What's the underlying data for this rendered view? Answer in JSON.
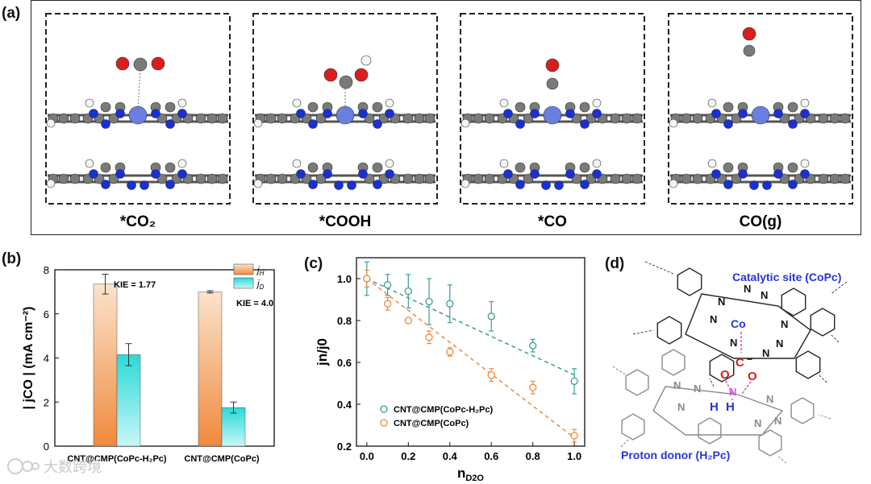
{
  "panel_a": {
    "label": "(a)",
    "states": [
      {
        "label": "*CO₂",
        "adsorbate": "CO2"
      },
      {
        "label": "*COOH",
        "adsorbate": "COOH"
      },
      {
        "label": "*CO",
        "adsorbate": "CO"
      },
      {
        "label": "CO(g)",
        "adsorbate": "COg"
      }
    ]
  },
  "colors": {
    "orange": "#f08a3c",
    "cyan": "#2bd9d9",
    "teal": "#3a9e96",
    "nitrogen": "#1a2fd6",
    "oxygen": "#d81e1e",
    "carbon": "#7a7a7a",
    "cobalt": "#6a7fe0",
    "blue_text": "#2536d8",
    "magenta": "#d04fd8"
  },
  "panel_b": {
    "label": "(b)"
  },
  "panel_c": {
    "label": "(c)"
  },
  "panel_d": {
    "label": "(d)",
    "catalytic_site": "Catalytic site (CoPc)",
    "proton_donor": "Proton donor (H₂Pc)",
    "co_label": "Co",
    "c_label": "C",
    "o_label": "O",
    "o_minus": "−",
    "n_label": "N",
    "h_label": "H"
  },
  "watermark": "大数跨境",
  "chart_data": [
    {
      "type": "bar",
      "panel": "(b)",
      "ylabel": "| jCO | (mA cm⁻²)",
      "ylim": [
        0,
        8
      ],
      "yticks": [
        "0",
        "2",
        "4",
        "6",
        "8"
      ],
      "categories": [
        "CNT@CMP(CoPc-H₂Pc)",
        "CNT@CMP(CoPc)"
      ],
      "series": [
        {
          "name": "jH",
          "values": [
            7.35,
            7.0
          ],
          "errors": [
            0.45,
            0.05
          ]
        },
        {
          "name": "jD",
          "values": [
            4.15,
            1.75
          ],
          "errors": [
            0.5,
            0.25
          ]
        }
      ],
      "legend": [
        {
          "main": "j",
          "sub": "H"
        },
        {
          "main": "j",
          "sub": "D"
        }
      ],
      "annotations": [
        "KIE = 1.77",
        "KIE = 4.0"
      ]
    },
    {
      "type": "scatter",
      "panel": "(c)",
      "xlabel": "nD2O",
      "ylabel": "jn/j0",
      "xlim": [
        -0.05,
        1.05
      ],
      "ylim": [
        0.2,
        1.1
      ],
      "xticks": [
        "0.0",
        "0.2",
        "0.4",
        "0.6",
        "0.8",
        "1.0"
      ],
      "yticks": [
        "0.2",
        "0.4",
        "0.6",
        "0.8",
        "1.0"
      ],
      "series": [
        {
          "name": "CNT@CMP(CoPc-H₂Pc)",
          "x": [
            0.0,
            0.1,
            0.2,
            0.3,
            0.4,
            0.6,
            0.8,
            1.0
          ],
          "y": [
            1.0,
            0.97,
            0.94,
            0.89,
            0.88,
            0.82,
            0.68,
            0.51
          ],
          "errors": [
            0.08,
            0.05,
            0.08,
            0.11,
            0.09,
            0.07,
            0.03,
            0.06
          ],
          "fit": [
            [
              0.0,
              1.0
            ],
            [
              1.0,
              0.54
            ]
          ]
        },
        {
          "name": "CNT@CMP(CoPc)",
          "x": [
            0.0,
            0.1,
            0.2,
            0.3,
            0.4,
            0.6,
            0.8,
            1.0
          ],
          "y": [
            1.0,
            0.88,
            0.8,
            0.72,
            0.65,
            0.54,
            0.48,
            0.25
          ],
          "errors": [
            0.04,
            0.03,
            0.01,
            0.03,
            0.02,
            0.03,
            0.03,
            0.03
          ],
          "fit": [
            [
              0.0,
              1.0
            ],
            [
              1.0,
              0.24
            ]
          ]
        }
      ]
    }
  ]
}
